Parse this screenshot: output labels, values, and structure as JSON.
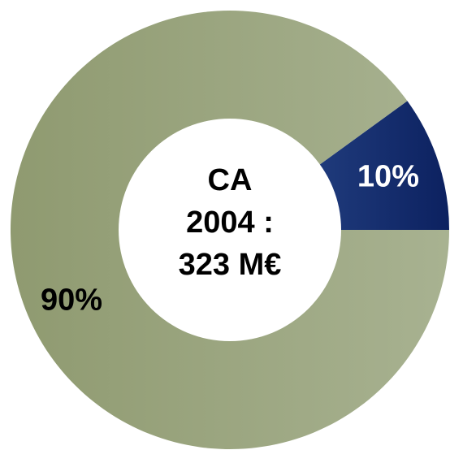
{
  "chart_data": {
    "type": "donut",
    "center_text": [
      "CA",
      "2004 :",
      "323 M€"
    ],
    "categories": [
      null,
      null
    ],
    "values": [
      10,
      90
    ],
    "value_labels": [
      "10%",
      "90%"
    ],
    "colors": [
      "#1f3a7a",
      "#a2ad88"
    ],
    "label_colors": [
      "#ffffff",
      "#000000"
    ]
  }
}
